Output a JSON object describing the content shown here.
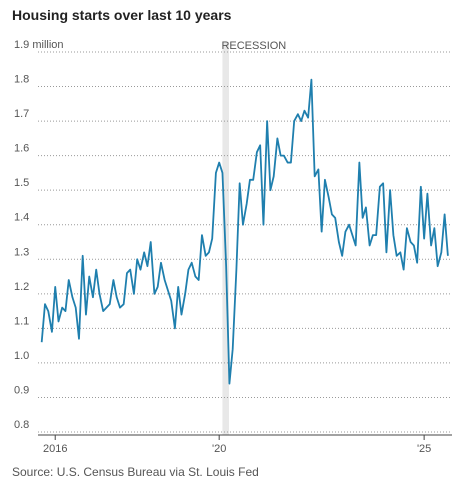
{
  "chart_data": {
    "type": "line",
    "title": "Housing starts over last 10 years",
    "source": "Source: U.S. Census Bureau via St. Louis Fed",
    "recession": {
      "label": "RECESSION",
      "start": 2020.08,
      "end": 2020.24
    },
    "x": [
      2015.67,
      2015.75,
      2015.83,
      2015.92,
      2016.0,
      2016.08,
      2016.17,
      2016.25,
      2016.33,
      2016.42,
      2016.5,
      2016.58,
      2016.67,
      2016.75,
      2016.83,
      2016.92,
      2017.0,
      2017.08,
      2017.17,
      2017.25,
      2017.33,
      2017.42,
      2017.5,
      2017.58,
      2017.67,
      2017.75,
      2017.83,
      2017.92,
      2018.0,
      2018.08,
      2018.17,
      2018.25,
      2018.33,
      2018.42,
      2018.5,
      2018.58,
      2018.67,
      2018.75,
      2018.83,
      2018.92,
      2019.0,
      2019.08,
      2019.17,
      2019.25,
      2019.33,
      2019.42,
      2019.5,
      2019.58,
      2019.67,
      2019.75,
      2019.83,
      2019.92,
      2020.0,
      2020.08,
      2020.17,
      2020.25,
      2020.33,
      2020.42,
      2020.5,
      2020.58,
      2020.67,
      2020.75,
      2020.83,
      2020.92,
      2021.0,
      2021.08,
      2021.17,
      2021.25,
      2021.33,
      2021.42,
      2021.5,
      2021.58,
      2021.67,
      2021.75,
      2021.83,
      2021.92,
      2022.0,
      2022.08,
      2022.17,
      2022.25,
      2022.33,
      2022.42,
      2022.5,
      2022.58,
      2022.67,
      2022.75,
      2022.83,
      2022.92,
      2023.0,
      2023.08,
      2023.17,
      2023.25,
      2023.33,
      2023.42,
      2023.5,
      2023.58,
      2023.67,
      2023.75,
      2023.83,
      2023.92,
      2024.0,
      2024.08,
      2024.17,
      2024.25,
      2024.33,
      2024.42,
      2024.5,
      2024.58,
      2024.67,
      2024.75,
      2024.83,
      2024.92,
      2025.0,
      2025.08,
      2025.17,
      2025.25,
      2025.33,
      2025.42,
      2025.5,
      2025.58
    ],
    "series": [
      {
        "name": "Housing starts",
        "color": "#1f7fae",
        "values": [
          1.06,
          1.17,
          1.15,
          1.09,
          1.22,
          1.12,
          1.16,
          1.15,
          1.24,
          1.19,
          1.16,
          1.07,
          1.31,
          1.14,
          1.25,
          1.19,
          1.27,
          1.2,
          1.15,
          1.16,
          1.17,
          1.24,
          1.19,
          1.16,
          1.17,
          1.26,
          1.27,
          1.2,
          1.3,
          1.27,
          1.32,
          1.28,
          1.35,
          1.2,
          1.22,
          1.29,
          1.24,
          1.21,
          1.18,
          1.1,
          1.22,
          1.14,
          1.2,
          1.27,
          1.29,
          1.25,
          1.24,
          1.37,
          1.31,
          1.32,
          1.36,
          1.55,
          1.58,
          1.55,
          1.28,
          0.94,
          1.04,
          1.27,
          1.52,
          1.4,
          1.46,
          1.53,
          1.53,
          1.61,
          1.63,
          1.4,
          1.7,
          1.5,
          1.54,
          1.65,
          1.6,
          1.6,
          1.58,
          1.58,
          1.7,
          1.72,
          1.7,
          1.73,
          1.71,
          1.82,
          1.54,
          1.56,
          1.38,
          1.53,
          1.48,
          1.43,
          1.42,
          1.35,
          1.31,
          1.38,
          1.4,
          1.37,
          1.34,
          1.58,
          1.42,
          1.45,
          1.34,
          1.37,
          1.37,
          1.51,
          1.52,
          1.32,
          1.5,
          1.37,
          1.31,
          1.32,
          1.27,
          1.39,
          1.35,
          1.34,
          1.29,
          1.51,
          1.36,
          1.49,
          1.34,
          1.39,
          1.28,
          1.32,
          1.43,
          1.31
        ]
      }
    ],
    "xlim": [
      2015.58,
      2025.68
    ],
    "xticks": [
      {
        "value": 2016,
        "label": "2016"
      },
      {
        "value": 2020,
        "label": "'20"
      },
      {
        "value": 2025,
        "label": "'25"
      }
    ],
    "ylim": [
      0.8,
      1.9
    ],
    "yticks": [
      0.8,
      0.9,
      {
        "value": 1,
        "label": "1.0"
      },
      1.1,
      1.2,
      1.3,
      1.4,
      1.5,
      1.6,
      1.7,
      1.8,
      {
        "value": 1.9,
        "label": "1.9 million"
      }
    ],
    "grid": true
  }
}
